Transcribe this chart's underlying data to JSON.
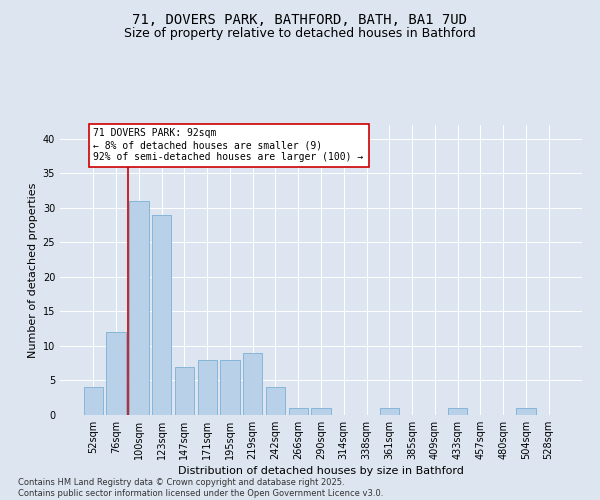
{
  "title_line1": "71, DOVERS PARK, BATHFORD, BATH, BA1 7UD",
  "title_line2": "Size of property relative to detached houses in Bathford",
  "xlabel": "Distribution of detached houses by size in Bathford",
  "ylabel": "Number of detached properties",
  "categories": [
    "52sqm",
    "76sqm",
    "100sqm",
    "123sqm",
    "147sqm",
    "171sqm",
    "195sqm",
    "219sqm",
    "242sqm",
    "266sqm",
    "290sqm",
    "314sqm",
    "338sqm",
    "361sqm",
    "385sqm",
    "409sqm",
    "433sqm",
    "457sqm",
    "480sqm",
    "504sqm",
    "528sqm"
  ],
  "values": [
    4,
    12,
    31,
    29,
    7,
    8,
    8,
    9,
    4,
    1,
    1,
    0,
    0,
    1,
    0,
    0,
    1,
    0,
    0,
    1,
    0
  ],
  "bar_color": "#b8d0e8",
  "bar_edge_color": "#7aafd4",
  "vline_x": 1.5,
  "vline_color": "#cc0000",
  "annotation_line1": "71 DOVERS PARK: 92sqm",
  "annotation_line2": "← 8% of detached houses are smaller (9)",
  "annotation_line3": "92% of semi-detached houses are larger (100) →",
  "annotation_box_facecolor": "#ffffff",
  "annotation_box_edgecolor": "#cc0000",
  "ylim": [
    0,
    42
  ],
  "yticks": [
    0,
    5,
    10,
    15,
    20,
    25,
    30,
    35,
    40
  ],
  "background_color": "#dde6f0",
  "grid_color": "#ffffff",
  "footer_line1": "Contains HM Land Registry data © Crown copyright and database right 2025.",
  "footer_line2": "Contains public sector information licensed under the Open Government Licence v3.0.",
  "title_fontsize": 10,
  "subtitle_fontsize": 9,
  "ylabel_fontsize": 8,
  "xlabel_fontsize": 8,
  "tick_fontsize": 7,
  "annotation_fontsize": 7,
  "footer_fontsize": 6
}
